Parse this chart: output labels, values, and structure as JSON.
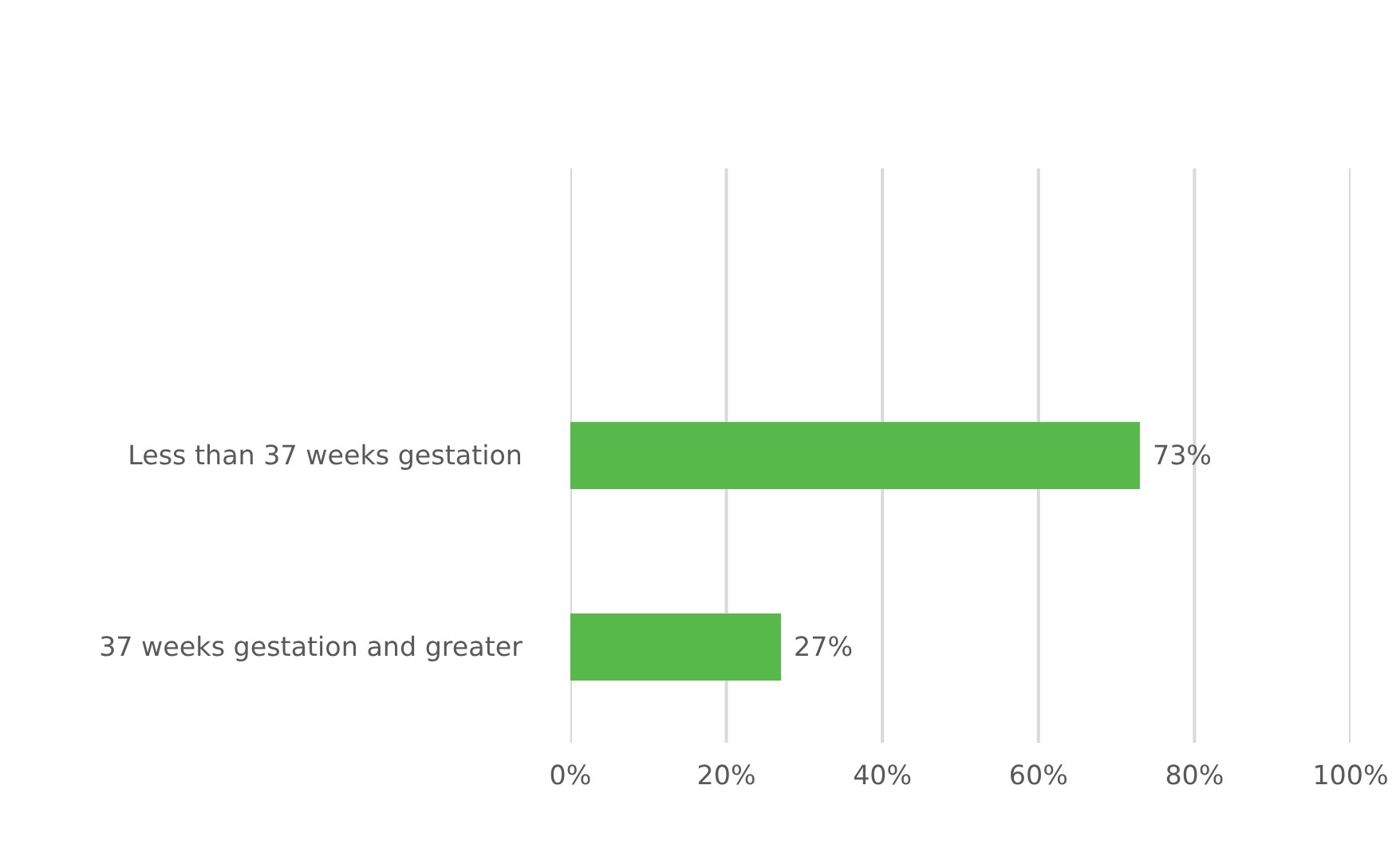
{
  "chart_data": {
    "type": "bar",
    "orientation": "horizontal",
    "categories": [
      null,
      "Less than 37 weeks gestation",
      "37 weeks gestation and greater"
    ],
    "values": [
      null,
      73,
      27
    ],
    "value_labels": [
      null,
      "73%",
      "27%"
    ],
    "color": "#57b94a",
    "xlim": [
      0,
      100
    ],
    "xticks": [
      {
        "value": 0,
        "label": "0%"
      },
      {
        "value": 20,
        "label": "20%"
      },
      {
        "value": 40,
        "label": "40%"
      },
      {
        "value": 60,
        "label": "60%"
      },
      {
        "value": 80,
        "label": "80%"
      },
      {
        "value": 100,
        "label": "100%"
      }
    ],
    "grid": "x"
  }
}
